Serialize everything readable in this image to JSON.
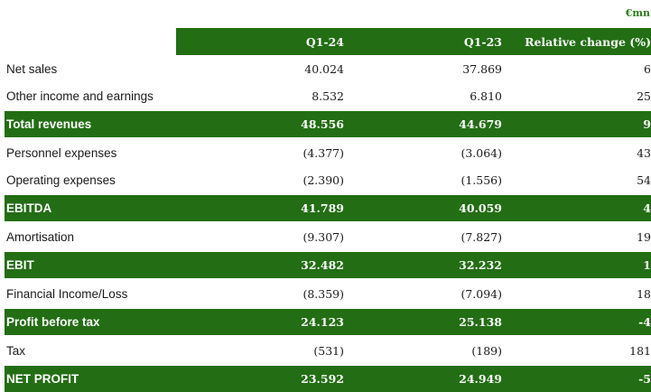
{
  "unit_label": "€mn",
  "columns": {
    "q124": "Q1-24",
    "q123": "Q1-23",
    "relative": "Relative change (%)"
  },
  "rows": [
    {
      "label": "Net sales",
      "q124": "40.024",
      "q123": "37.869",
      "relative": "6",
      "total": false
    },
    {
      "label": "Other income and earnings",
      "q124": "8.532",
      "q123": "6.810",
      "relative": "25",
      "total": false
    },
    {
      "label": "Total revenues",
      "q124": "48.556",
      "q123": "44.679",
      "relative": "9",
      "total": true
    },
    {
      "label": "Personnel expenses",
      "q124": "(4.377)",
      "q123": "(3.064)",
      "relative": "43",
      "total": false
    },
    {
      "label": "Operating expenses",
      "q124": "(2.390)",
      "q123": "(1.556)",
      "relative": "54",
      "total": false
    },
    {
      "label": "EBITDA",
      "q124": "41.789",
      "q123": "40.059",
      "relative": "4",
      "total": true
    },
    {
      "label": "Amortisation",
      "q124": "(9.307)",
      "q123": "(7.827)",
      "relative": "19",
      "total": false
    },
    {
      "label": "EBIT",
      "q124": "32.482",
      "q123": "32.232",
      "relative": "1",
      "total": true
    },
    {
      "label": "Financial Income/Loss",
      "q124": "(8.359)",
      "q123": "(7.094)",
      "relative": "18",
      "total": false
    },
    {
      "label": "Profit before tax",
      "q124": "24.123",
      "q123": "25.138",
      "relative": "-4",
      "total": true
    },
    {
      "label": "Tax",
      "q124": "(531)",
      "q123": "(189)",
      "relative": "181",
      "total": false
    },
    {
      "label": "NET PROFIT",
      "q124": "23.592",
      "q123": "24.949",
      "relative": "-5",
      "total": true
    }
  ],
  "colors": {
    "header_bg": "#236e14",
    "header_text": "#ffffff",
    "unit_text": "#2e7d1e"
  }
}
